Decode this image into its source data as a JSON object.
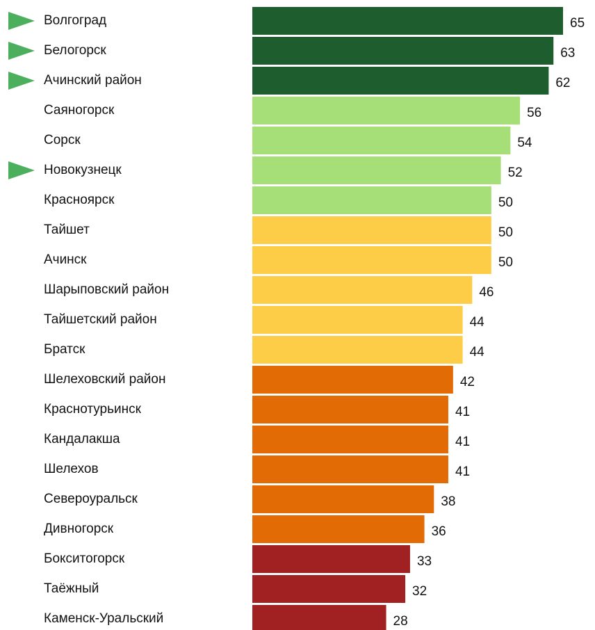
{
  "chart_data": {
    "type": "hbar",
    "categories": [
      "Волгоград",
      "Белогорск",
      "Ачинский район",
      "Саяногорск",
      "Сорск",
      "Новокузнецк",
      "Красноярск",
      "Тайшет",
      "Ачинск",
      "Шарыповский район",
      "Тайшетский район",
      "Братск",
      "Шелеховский район",
      "Краснотурьинск",
      "Кандалакша",
      "Шелехов",
      "Североуральск",
      "Дивногорск",
      "Бокситогорск",
      "Таёжный",
      "Каменск-Уральский"
    ],
    "values": [
      65,
      63,
      62,
      56,
      54,
      52,
      50,
      50,
      50,
      46,
      44,
      44,
      42,
      41,
      41,
      41,
      38,
      36,
      33,
      32,
      28
    ],
    "colors": [
      "#1e5e2e",
      "#1e5e2e",
      "#1e5e2e",
      "#a6de77",
      "#a6de77",
      "#a6de77",
      "#a6de77",
      "#fecd48",
      "#fecd48",
      "#fecd48",
      "#fecd48",
      "#fecd48",
      "#e36b06",
      "#e36b06",
      "#e36b06",
      "#e36b06",
      "#e36b06",
      "#e36b06",
      "#a12022",
      "#a12022",
      "#a12022"
    ],
    "highlighted": [
      true,
      true,
      true,
      false,
      false,
      true,
      false,
      false,
      false,
      false,
      false,
      false,
      false,
      false,
      false,
      false,
      false,
      false,
      false,
      false,
      false
    ],
    "marker_color": "#4caf5e",
    "xlim": [
      0,
      65
    ]
  }
}
